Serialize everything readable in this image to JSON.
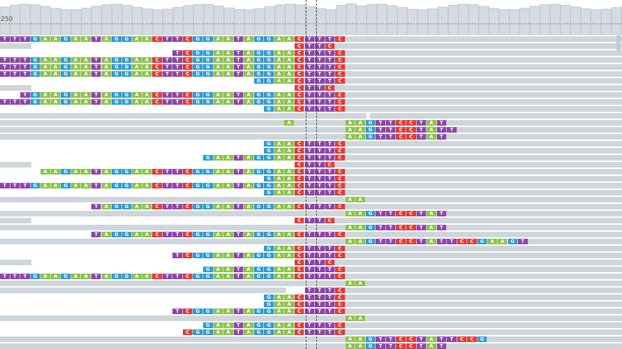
{
  "coverage": {
    "scale_label": "250"
  },
  "colors": {
    "A": "#8bc34a",
    "C": "#e53935",
    "G": "#2e9bd6",
    "T": "#8e44ad",
    "read": "#cfd6db"
  },
  "rows": [
    {
      "bars": [
        [
          0,
          891
        ]
      ],
      "bases": [
        {
          "col": 0,
          "seq": "TTTGAAGAATAGGAACTTCGGAATAGGAACTTTC"
        }
      ]
    },
    {
      "bars": [
        [
          0,
          45
        ],
        [
          425,
          891
        ]
      ],
      "bases": [
        {
          "col": 29,
          "seq": "CTTC"
        }
      ]
    },
    {
      "bars": [
        [
          248,
          891
        ]
      ],
      "bases": [
        {
          "col": 17,
          "seq": "TCGGAATAGGAACTTTC"
        }
      ]
    },
    {
      "bars": [
        [
          0,
          891
        ]
      ],
      "bases": [
        {
          "col": 0,
          "seq": "TTTGAAGAATAGGAACTTCGGAATAGGAACTTTC"
        }
      ]
    },
    {
      "bars": [
        [
          0,
          891
        ]
      ],
      "bases": [
        {
          "col": 0,
          "seq": "TTTGAAGAATAGGAACTTCGGAATAGGAACTTTC"
        }
      ]
    },
    {
      "bars": [
        [
          0,
          891
        ]
      ],
      "bases": [
        {
          "col": 0,
          "seq": "TTTGAAGAATAGGAACTTCGGAATAGGAACTTTC"
        }
      ]
    },
    {
      "bars": [
        [
          365,
          891
        ]
      ],
      "bases": [
        {
          "col": 25,
          "seq": "GGAACTTTC"
        }
      ]
    },
    {
      "bars": [
        [
          0,
          45
        ],
        [
          425,
          891
        ]
      ],
      "bases": [
        {
          "col": 29,
          "seq": "CTTC"
        }
      ]
    },
    {
      "bars": [
        [
          30,
          891
        ]
      ],
      "bases": [
        {
          "col": 2,
          "seq": "TGAAGAATAGGAACTTCGGAATAGGAACTTTC"
        }
      ]
    },
    {
      "bars": [
        [
          0,
          891
        ]
      ],
      "bases": [
        {
          "col": 0,
          "seq": "TTTGAAGAATAGGAACTTCGGAATAGGAACTTTC"
        }
      ]
    },
    {
      "bars": [
        [
          380,
          891
        ]
      ],
      "bases": [
        {
          "col": 26,
          "seq": "GAACTTTC"
        }
      ]
    },
    {
      "bars": [
        [
          0,
          525
        ],
        [
          530,
          891
        ]
      ],
      "bases": []
    },
    {
      "bars": [
        [
          0,
          891
        ]
      ],
      "bases": [
        {
          "col": 28,
          "seq": "A"
        },
        {
          "col": 34,
          "seq": "AAGTTCCTAT"
        }
      ]
    },
    {
      "bars": [
        [
          0,
          891
        ]
      ],
      "bases": [
        {
          "col": 34,
          "seq": "AAGTTCCTATT"
        }
      ]
    },
    {
      "bars": [
        [
          0,
          891
        ]
      ],
      "bases": [
        {
          "col": 34,
          "seq": "AAGTTCCTAT"
        }
      ]
    },
    {
      "bars": [
        [
          380,
          891
        ]
      ],
      "bases": [
        {
          "col": 26,
          "seq": "GAACTTTC"
        }
      ]
    },
    {
      "bars": [
        [
          380,
          891
        ]
      ],
      "bases": [
        {
          "col": 26,
          "seq": "GAACTTTC"
        }
      ]
    },
    {
      "bars": [
        [
          293,
          891
        ]
      ],
      "bases": [
        {
          "col": 20,
          "seq": "GAATAGGAACTTTC"
        }
      ]
    },
    {
      "bars": [
        [
          0,
          45
        ],
        [
          425,
          891
        ]
      ],
      "bases": [
        {
          "col": 29,
          "seq": "CTTC"
        }
      ]
    },
    {
      "bars": [
        [
          58,
          891
        ]
      ],
      "bases": [
        {
          "col": 4,
          "seq": "AAGAATAGGAACTTCGGAATAGGAACTTTC"
        }
      ]
    },
    {
      "bars": [
        [
          380,
          891
        ]
      ],
      "bases": [
        {
          "col": 26,
          "seq": "GAACTTTC"
        }
      ]
    },
    {
      "bars": [
        [
          0,
          891
        ]
      ],
      "bases": [
        {
          "col": 0,
          "seq": "TTTGAAGAATAGGAACTTCGGAATAGGAACTTTC"
        }
      ]
    },
    {
      "bars": [
        [
          380,
          891
        ]
      ],
      "bases": [
        {
          "col": 26,
          "seq": "GAACTTTC"
        }
      ]
    },
    {
      "bars": [
        [
          0,
          891
        ]
      ],
      "bases": [
        {
          "col": 34,
          "seq": "AA"
        }
      ]
    },
    {
      "bars": [
        [
          130,
          891
        ]
      ],
      "bases": [
        {
          "col": 9,
          "seq": "TAGGAACTTCGGAATAGGAACTTTC"
        }
      ]
    },
    {
      "bars": [
        [
          0,
          891
        ]
      ],
      "bases": [
        {
          "col": 34,
          "seq": "AAGTTCCTAT"
        }
      ]
    },
    {
      "bars": [
        [
          0,
          45
        ],
        [
          425,
          891
        ]
      ],
      "bases": [
        {
          "col": 29,
          "seq": "CTTC"
        }
      ]
    },
    {
      "bars": [
        [
          0,
          891
        ]
      ],
      "bases": [
        {
          "col": 34,
          "seq": "AAGTTCCTAT"
        }
      ]
    },
    {
      "bars": [
        [
          130,
          891
        ]
      ],
      "bases": [
        {
          "col": 9,
          "seq": "TAGGAACTTCGGAATAGGAACTTTC"
        }
      ]
    },
    {
      "bars": [
        [
          0,
          891
        ]
      ],
      "bases": [
        {
          "col": 34,
          "seq": "AAGTTCCTATTCCGAAGT"
        }
      ]
    },
    {
      "bars": [
        [
          380,
          891
        ]
      ],
      "bases": [
        {
          "col": 26,
          "seq": "GAACTTTC"
        }
      ]
    },
    {
      "bars": [
        [
          248,
          891
        ]
      ],
      "bases": [
        {
          "col": 17,
          "seq": "TCGGAATAGGAACTTTC"
        }
      ]
    },
    {
      "bars": [
        [
          0,
          45
        ],
        [
          425,
          891
        ]
      ],
      "bases": [
        {
          "col": 29,
          "seq": "CTTC"
        }
      ]
    },
    {
      "bars": [
        [
          293,
          891
        ]
      ],
      "bases": [
        {
          "col": 20,
          "seq": "GAATAGGAACTTTC"
        }
      ]
    },
    {
      "bars": [
        [
          0,
          891
        ]
      ],
      "bases": [
        {
          "col": 0,
          "seq": "TTTGAAGAATAGGAACTTCGGAATAGGAACTTTC"
        }
      ]
    },
    {
      "bars": [
        [
          0,
          891
        ]
      ],
      "bases": [
        {
          "col": 34,
          "seq": "AA"
        }
      ]
    },
    {
      "bars": [
        [
          0,
          410
        ],
        [
          437,
          891
        ]
      ],
      "bases": [
        {
          "col": 30,
          "seq": "TTTC"
        }
      ]
    },
    {
      "bars": [
        [
          380,
          891
        ]
      ],
      "bases": [
        {
          "col": 26,
          "seq": "GAACTTTC"
        }
      ]
    },
    {
      "bars": [
        [
          380,
          891
        ]
      ],
      "bases": [
        {
          "col": 26,
          "seq": "GAACTTTC"
        }
      ]
    },
    {
      "bars": [
        [
          248,
          891
        ]
      ],
      "bases": [
        {
          "col": 17,
          "seq": "TCGGAATAGGAACTTTC"
        }
      ]
    },
    {
      "bars": [
        [
          0,
          891
        ]
      ],
      "bases": [
        {
          "col": 34,
          "seq": "AA"
        }
      ]
    },
    {
      "bars": [
        [
          293,
          891
        ]
      ],
      "bases": [
        {
          "col": 20,
          "seq": "GAATAGGAACTTTC"
        }
      ]
    },
    {
      "bars": [
        [
          263,
          891
        ]
      ],
      "bases": [
        {
          "col": 18,
          "seq": "CGGAATAGGAACTTTC"
        }
      ]
    },
    {
      "bars": [
        [
          0,
          891
        ]
      ],
      "bases": [
        {
          "col": 34,
          "seq": "AAGTTCCTATTCCG"
        }
      ]
    },
    {
      "bars": [
        [
          0,
          891
        ]
      ],
      "bases": [
        {
          "col": 34,
          "seq": "AAGTTCCTAT"
        }
      ]
    }
  ]
}
